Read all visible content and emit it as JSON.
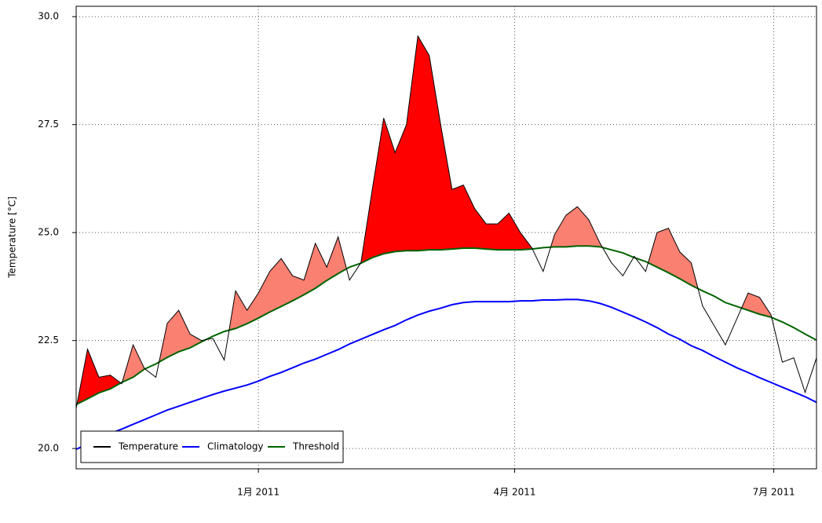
{
  "chart_data": {
    "type": "line",
    "ylabel": "Temperature [°C]",
    "x": [
      -64,
      -60,
      -56,
      -52,
      -48,
      -44,
      -40,
      -36,
      -32,
      -28,
      -24,
      -20,
      -16,
      -12,
      -8,
      -4,
      0,
      4,
      8,
      12,
      16,
      20,
      24,
      28,
      32,
      36,
      40,
      44,
      48,
      52,
      56,
      60,
      64,
      68,
      72,
      76,
      80,
      84,
      88,
      92,
      96,
      100,
      104,
      108,
      112,
      116,
      120,
      124,
      128,
      132,
      136,
      140,
      144,
      148,
      152,
      156,
      160,
      164,
      168,
      172,
      176,
      180,
      184,
      188,
      192,
      196
    ],
    "xlim": [
      -64,
      196
    ],
    "xticks": [
      {
        "value": 0,
        "label": "1月 2011"
      },
      {
        "value": 90,
        "label": "4月 2011"
      },
      {
        "value": 181,
        "label": "7月 2011"
      }
    ],
    "ylim": [
      19.53,
      30.24
    ],
    "yticks": [
      {
        "value": 20,
        "label": "20.0"
      },
      {
        "value": 22.5,
        "label": "22.5"
      },
      {
        "value": 25,
        "label": "25.0"
      },
      {
        "value": 27.5,
        "label": "27.5"
      },
      {
        "value": 30,
        "label": "30.0"
      }
    ],
    "grid": true,
    "legend": "lower left",
    "heatwave_colors": [
      "#fa8072",
      "#ff0000"
    ],
    "series": [
      {
        "name": "Temperature",
        "color": "#000000",
        "values": [
          20.93,
          22.3,
          21.65,
          21.7,
          21.5,
          22.4,
          21.85,
          21.65,
          22.9,
          23.2,
          22.65,
          22.5,
          22.55,
          22.05,
          23.65,
          23.2,
          23.6,
          24.1,
          24.4,
          24.0,
          23.9,
          24.75,
          24.2,
          24.9,
          23.9,
          24.3,
          26.0,
          27.65,
          26.85,
          27.5,
          29.55,
          29.1,
          27.5,
          26.0,
          26.1,
          25.55,
          25.2,
          25.2,
          25.45,
          25.0,
          24.65,
          24.1,
          24.95,
          25.4,
          25.6,
          25.3,
          24.75,
          24.3,
          24.0,
          24.45,
          24.1,
          25.0,
          25.1,
          24.55,
          24.3,
          23.3,
          22.85,
          22.4,
          23.0,
          23.6,
          23.5,
          23.1,
          22.0,
          22.1,
          21.3,
          22.1
        ]
      },
      {
        "name": "Climatology",
        "color": "#0000ff",
        "values": [
          19.98,
          20.11,
          20.2,
          20.35,
          20.45,
          20.56,
          20.67,
          20.78,
          20.89,
          20.98,
          21.07,
          21.16,
          21.25,
          21.33,
          21.4,
          21.47,
          21.56,
          21.67,
          21.76,
          21.87,
          21.98,
          22.07,
          22.18,
          22.29,
          22.42,
          22.53,
          22.64,
          22.75,
          22.85,
          22.98,
          23.09,
          23.18,
          23.25,
          23.33,
          23.38,
          23.4,
          23.4,
          23.4,
          23.4,
          23.42,
          23.42,
          23.44,
          23.44,
          23.45,
          23.45,
          23.42,
          23.36,
          23.27,
          23.16,
          23.05,
          22.93,
          22.8,
          22.65,
          22.53,
          22.38,
          22.27,
          22.13,
          22.0,
          21.87,
          21.76,
          21.64,
          21.53,
          21.42,
          21.31,
          21.2,
          21.07
        ]
      },
      {
        "name": "Threshold",
        "color": "#006400",
        "values": [
          21.02,
          21.15,
          21.29,
          21.38,
          21.53,
          21.65,
          21.84,
          21.96,
          22.11,
          22.24,
          22.33,
          22.47,
          22.6,
          22.71,
          22.78,
          22.89,
          23.02,
          23.16,
          23.29,
          23.42,
          23.56,
          23.71,
          23.89,
          24.05,
          24.2,
          24.29,
          24.42,
          24.51,
          24.56,
          24.58,
          24.58,
          24.6,
          24.6,
          24.62,
          24.64,
          24.64,
          24.62,
          24.6,
          24.6,
          24.6,
          24.62,
          24.65,
          24.67,
          24.67,
          24.69,
          24.69,
          24.67,
          24.6,
          24.53,
          24.42,
          24.33,
          24.2,
          24.07,
          23.93,
          23.78,
          23.65,
          23.53,
          23.38,
          23.29,
          23.2,
          23.11,
          23.04,
          22.93,
          22.8,
          22.65,
          22.51
        ]
      }
    ]
  }
}
